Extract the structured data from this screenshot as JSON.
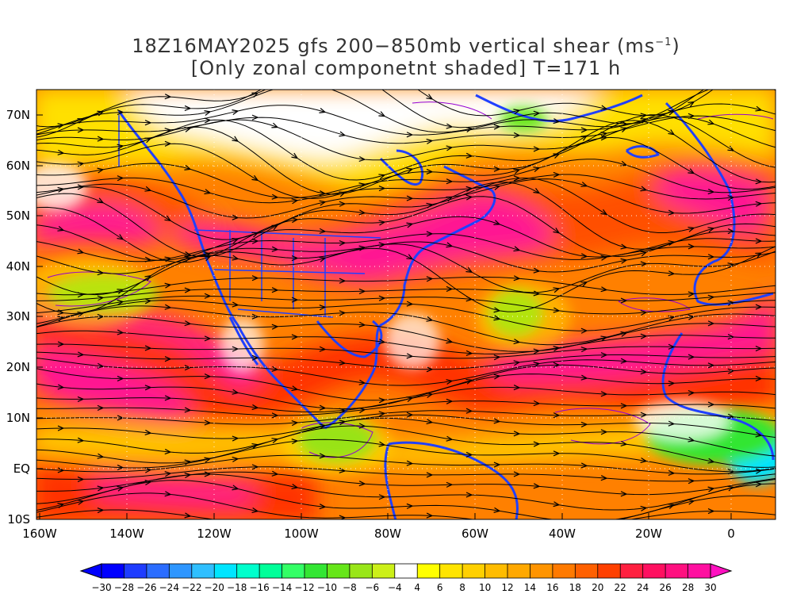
{
  "title": {
    "line1_prefix": "18Z16MAY2025 gfs 200−850mb vertical shear (ms",
    "line1_sup": "−1",
    "line1_suffix": ")",
    "line2": "[Only zonal componetnt shaded] T=171 h"
  },
  "lat_labels": [
    "70N",
    "60N",
    "50N",
    "40N",
    "30N",
    "20N",
    "10N",
    "EQ",
    "10S"
  ],
  "lon_labels": [
    "160W",
    "140W",
    "120W",
    "100W",
    "80W",
    "60W",
    "40W",
    "20W",
    "0"
  ],
  "colorbar": {
    "labels": [
      "−30",
      "−28",
      "−26",
      "−24",
      "−22",
      "−20",
      "−18",
      "−16",
      "−14",
      "−12",
      "−10",
      "−8",
      "−6",
      "−4",
      "4",
      "6",
      "8",
      "10",
      "12",
      "14",
      "16",
      "18",
      "20",
      "22",
      "24",
      "26",
      "28",
      "30"
    ],
    "colors": [
      "#0000ff",
      "#1e3cff",
      "#2b6dff",
      "#2e96ff",
      "#2fbfff",
      "#00e5ff",
      "#00ffcc",
      "#00ff99",
      "#33ff66",
      "#33e633",
      "#66e619",
      "#99e619",
      "#ccf019",
      "#ffffff",
      "#ffff00",
      "#ffe400",
      "#ffd000",
      "#ffbc00",
      "#ffa800",
      "#ff9400",
      "#ff7a00",
      "#ff6000",
      "#ff4000",
      "#ff2040",
      "#ff1060",
      "#ff1080",
      "#ff10a0"
    ],
    "left_arrow_color": "#0000ff",
    "right_arrow_color": "#ff10c0"
  },
  "map_colors": {
    "jet": "#ff1493",
    "red": "#ff3000",
    "orange": "#ff8000",
    "yellow": "#ffe000",
    "green": "#66e619",
    "coast": "#2040ff",
    "contour": "#9400d3",
    "streamline": "#000000"
  }
}
